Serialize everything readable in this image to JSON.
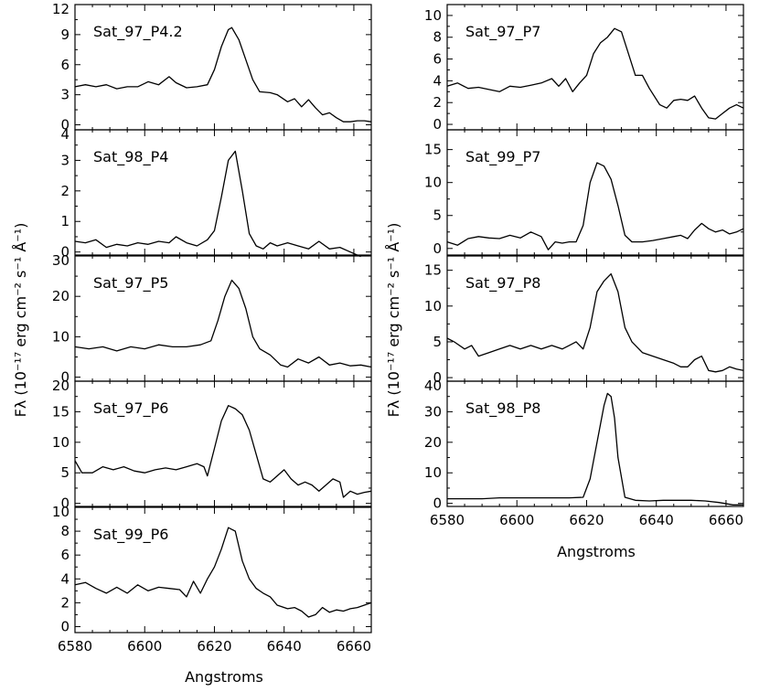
{
  "chart_data": {
    "type": "line",
    "title": "",
    "columns": [
      {
        "xlabel": "Angstroms",
        "ylabel": "Fλ (10⁻¹⁷ erg cm⁻² s⁻¹ Å⁻¹)",
        "xlim": [
          6580,
          6665
        ],
        "xticks": [
          6580,
          6600,
          6620,
          6640,
          6660
        ],
        "panels": [
          {
            "name": "Sat_97_P4.2",
            "ylim": [
              -0.5,
              12
            ],
            "yticks": [
              0,
              3,
              6,
              9,
              12
            ],
            "x": [
              6580,
              6583,
              6586,
              6589,
              6592,
              6595,
              6598,
              6601,
              6604,
              6607,
              6609,
              6612,
              6615,
              6618,
              6620,
              6622,
              6624,
              6625,
              6627,
              6629,
              6631,
              6633,
              6636,
              6638,
              6641,
              6643,
              6645,
              6647,
              6649,
              6651,
              6653,
              6655,
              6657,
              6659,
              6661,
              6663,
              6665
            ],
            "y": [
              3.8,
              4.0,
              3.8,
              4.0,
              3.6,
              3.8,
              3.8,
              4.3,
              4.0,
              4.8,
              4.2,
              3.7,
              3.8,
              4.0,
              5.5,
              7.8,
              9.5,
              9.7,
              8.5,
              6.5,
              4.5,
              3.3,
              3.2,
              3.0,
              2.3,
              2.6,
              1.8,
              2.5,
              1.7,
              1.0,
              1.2,
              0.7,
              0.3,
              0.3,
              0.4,
              0.4,
              0.3
            ]
          },
          {
            "name": "Sat_98_P4",
            "ylim": [
              -0.1,
              4
            ],
            "yticks": [
              0,
              1,
              2,
              3,
              4
            ],
            "x": [
              6580,
              6583,
              6586,
              6589,
              6592,
              6595,
              6598,
              6601,
              6604,
              6607,
              6609,
              6612,
              6615,
              6618,
              6620,
              6622,
              6624,
              6626,
              6628,
              6630,
              6632,
              6634,
              6636,
              6638,
              6641,
              6644,
              6647,
              6650,
              6653,
              6656,
              6659,
              6662
            ],
            "y": [
              0.35,
              0.3,
              0.4,
              0.15,
              0.25,
              0.2,
              0.3,
              0.25,
              0.35,
              0.3,
              0.5,
              0.3,
              0.2,
              0.4,
              0.7,
              1.8,
              3.0,
              3.3,
              2.0,
              0.6,
              0.2,
              0.1,
              0.3,
              0.2,
              0.3,
              0.2,
              0.1,
              0.35,
              0.1,
              0.15,
              0.0,
              -0.15
            ]
          },
          {
            "name": "Sat_97_P5",
            "ylim": [
              -1,
              30
            ],
            "yticks": [
              0,
              10,
              20,
              30
            ],
            "x": [
              6580,
              6584,
              6588,
              6592,
              6596,
              6600,
              6604,
              6608,
              6612,
              6616,
              6619,
              6621,
              6623,
              6625,
              6627,
              6629,
              6631,
              6633,
              6636,
              6639,
              6641,
              6644,
              6647,
              6650,
              6653,
              6656,
              6659,
              6662,
              6665
            ],
            "y": [
              7.5,
              7.0,
              7.5,
              6.5,
              7.5,
              7.0,
              8.0,
              7.5,
              7.5,
              8.0,
              9.0,
              14.0,
              20.0,
              24.0,
              22.0,
              17.0,
              10.0,
              7.0,
              5.5,
              3.0,
              2.5,
              4.5,
              3.5,
              5.0,
              3.0,
              3.5,
              2.8,
              3.0,
              2.5
            ]
          },
          {
            "name": "Sat_97_P6",
            "ylim": [
              -0.5,
              20
            ],
            "yticks": [
              0,
              5,
              10,
              15,
              20
            ],
            "x": [
              6580,
              6582,
              6585,
              6588,
              6591,
              6594,
              6597,
              6600,
              6603,
              6606,
              6609,
              6612,
              6615,
              6617,
              6618,
              6620,
              6622,
              6624,
              6626,
              6628,
              6630,
              6632,
              6634,
              6636,
              6638,
              6640,
              6642,
              6644,
              6646,
              6648,
              6650,
              6652,
              6654,
              6656,
              6657,
              6659,
              6661,
              6663,
              6665
            ],
            "y": [
              7.0,
              5.0,
              5.0,
              6.0,
              5.5,
              6.0,
              5.3,
              5.0,
              5.5,
              5.8,
              5.5,
              6.0,
              6.5,
              6.0,
              4.5,
              9.0,
              13.5,
              16.0,
              15.5,
              14.5,
              12.0,
              8.0,
              4.0,
              3.5,
              4.5,
              5.5,
              4.0,
              3.0,
              3.5,
              3.0,
              2.0,
              3.0,
              4.0,
              3.5,
              1.0,
              2.0,
              1.5,
              1.8,
              2.0
            ]
          },
          {
            "name": "Sat_99_P6",
            "ylim": [
              -0.5,
              10
            ],
            "yticks": [
              0,
              2,
              4,
              6,
              8,
              10
            ],
            "x": [
              6580,
              6583,
              6586,
              6589,
              6592,
              6595,
              6598,
              6601,
              6604,
              6607,
              6610,
              6612,
              6614,
              6616,
              6618,
              6620,
              6622,
              6624,
              6626,
              6628,
              6630,
              6632,
              6634,
              6636,
              6638,
              6641,
              6643,
              6645,
              6647,
              6649,
              6651,
              6653,
              6655,
              6657,
              6659,
              6661,
              6663,
              6665
            ],
            "y": [
              3.5,
              3.7,
              3.2,
              2.8,
              3.3,
              2.8,
              3.5,
              3.0,
              3.3,
              3.2,
              3.1,
              2.5,
              3.8,
              2.8,
              4.0,
              5.0,
              6.5,
              8.3,
              8.0,
              5.5,
              4.0,
              3.2,
              2.8,
              2.5,
              1.8,
              1.5,
              1.6,
              1.3,
              0.8,
              1.0,
              1.6,
              1.2,
              1.4,
              1.3,
              1.5,
              1.6,
              1.8,
              2.0
            ]
          }
        ]
      },
      {
        "xlabel": "Angstroms",
        "ylabel": "Fλ (10⁻¹⁷ erg cm⁻² s⁻¹ Å⁻¹)",
        "xlim": [
          6580,
          6665
        ],
        "xticks": [
          6580,
          6600,
          6620,
          6640,
          6660
        ],
        "panels": [
          {
            "name": "Sat_97_P7",
            "ylim": [
              -0.5,
              11
            ],
            "yticks": [
              0,
              2,
              4,
              6,
              8,
              10
            ],
            "x": [
              6580,
              6583,
              6586,
              6589,
              6592,
              6595,
              6598,
              6601,
              6604,
              6607,
              6610,
              6612,
              6614,
              6616,
              6618,
              6620,
              6622,
              6624,
              6626,
              6628,
              6630,
              6632,
              6634,
              6636,
              6638,
              6641,
              6643,
              6645,
              6647,
              6649,
              6651,
              6653,
              6655,
              6657,
              6659,
              6661,
              6663,
              6665
            ],
            "y": [
              3.5,
              3.8,
              3.3,
              3.4,
              3.2,
              3.0,
              3.5,
              3.4,
              3.6,
              3.8,
              4.2,
              3.5,
              4.2,
              3.0,
              3.8,
              4.5,
              6.5,
              7.5,
              8.0,
              8.8,
              8.5,
              6.5,
              4.5,
              4.5,
              3.3,
              1.8,
              1.5,
              2.2,
              2.3,
              2.2,
              2.6,
              1.5,
              0.6,
              0.5,
              1.0,
              1.5,
              1.8,
              1.5
            ]
          },
          {
            "name": "Sat_99_P7",
            "ylim": [
              -1,
              18
            ],
            "yticks": [
              0,
              5,
              10,
              15
            ],
            "x": [
              6580,
              6583,
              6586,
              6589,
              6592,
              6595,
              6598,
              6601,
              6604,
              6607,
              6609,
              6611,
              6613,
              6615,
              6617,
              6619,
              6621,
              6623,
              6625,
              6627,
              6629,
              6631,
              6633,
              6636,
              6639,
              6642,
              6645,
              6647,
              6649,
              6651,
              6653,
              6655,
              6657,
              6659,
              6661,
              6663,
              6665
            ],
            "y": [
              1.0,
              0.5,
              1.5,
              1.8,
              1.6,
              1.5,
              2.0,
              1.6,
              2.5,
              1.8,
              -0.2,
              1.0,
              0.8,
              1.0,
              1.0,
              3.5,
              10.0,
              13.0,
              12.5,
              10.5,
              6.5,
              2.0,
              1.0,
              1.0,
              1.2,
              1.5,
              1.8,
              2.0,
              1.5,
              2.8,
              3.8,
              3.0,
              2.5,
              2.8,
              2.2,
              2.5,
              3.0
            ]
          },
          {
            "name": "Sat_97_P8",
            "ylim": [
              -0.5,
              17
            ],
            "yticks": [
              0,
              5,
              10,
              15
            ],
            "x": [
              6580,
              6582,
              6585,
              6587,
              6589,
              6592,
              6595,
              6598,
              6601,
              6604,
              6607,
              6610,
              6613,
              6615,
              6617,
              6619,
              6621,
              6623,
              6625,
              6627,
              6629,
              6631,
              6633,
              6636,
              6639,
              6642,
              6645,
              6647,
              6649,
              6651,
              6653,
              6655,
              6657,
              6659,
              6661,
              6663,
              6665
            ],
            "y": [
              5.5,
              5.0,
              4.0,
              4.5,
              3.0,
              3.5,
              4.0,
              4.5,
              4.0,
              4.5,
              4.0,
              4.5,
              4.0,
              4.5,
              5.0,
              4.0,
              7.0,
              12.0,
              13.5,
              14.5,
              12.0,
              7.0,
              5.0,
              3.5,
              3.0,
              2.5,
              2.0,
              1.5,
              1.5,
              2.5,
              3.0,
              1.0,
              0.8,
              1.0,
              1.5,
              1.2,
              1.0
            ]
          },
          {
            "name": "Sat_98_P8",
            "ylim": [
              -1,
              40
            ],
            "yticks": [
              0,
              10,
              20,
              30,
              40
            ],
            "x": [
              6580,
              6585,
              6590,
              6595,
              6600,
              6605,
              6610,
              6615,
              6619,
              6621,
              6623,
              6625,
              6626,
              6627,
              6628,
              6629,
              6631,
              6634,
              6638,
              6642,
              6646,
              6650,
              6654,
              6658,
              6662,
              6665
            ],
            "y": [
              1.5,
              1.5,
              1.5,
              1.8,
              1.8,
              1.8,
              1.8,
              1.8,
              2.0,
              8.0,
              20.0,
              32.0,
              36.0,
              35.0,
              28.0,
              15.0,
              2.0,
              1.0,
              0.8,
              1.0,
              1.0,
              1.0,
              0.8,
              0.3,
              -0.5,
              -0.5
            ]
          }
        ]
      }
    ]
  }
}
